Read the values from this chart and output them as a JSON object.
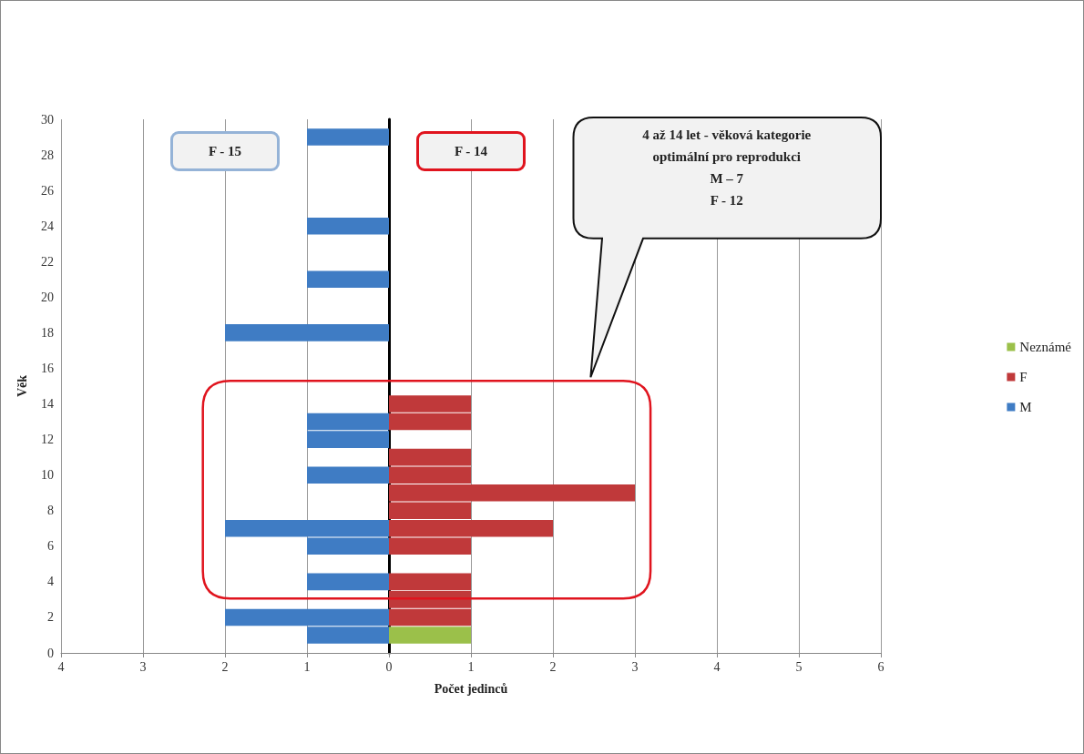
{
  "chart_data": {
    "type": "bar",
    "orientation": "horizontal",
    "stacked": true,
    "xlabel": "Počet jedinců",
    "ylabel": "Věk",
    "x": [
      1,
      2,
      3,
      4,
      6,
      7,
      8,
      9,
      10,
      11,
      12,
      13,
      14,
      18,
      21,
      24,
      29
    ],
    "series": [
      {
        "name": "M",
        "color": "#3f7cc4",
        "values": [
          -1,
          -2,
          null,
          -1,
          -1,
          -2,
          null,
          null,
          -1,
          null,
          -1,
          -1,
          null,
          -2,
          -1,
          -1,
          -1
        ]
      },
      {
        "name": "F",
        "color": "#c0393a",
        "values": [
          null,
          1,
          1,
          1,
          1,
          2,
          1,
          3,
          1,
          1,
          null,
          1,
          1,
          null,
          null,
          null,
          null
        ]
      },
      {
        "name": "Neznámé",
        "color": "#9bc04a",
        "values": [
          1,
          null,
          null,
          null,
          null,
          null,
          null,
          null,
          null,
          null,
          null,
          null,
          null,
          null,
          null,
          null,
          null
        ]
      }
    ],
    "xlim": [
      -4,
      6
    ],
    "xticks": [
      {
        "value": -4,
        "label": "4"
      },
      {
        "value": -3,
        "label": "3"
      },
      {
        "value": -2,
        "label": "2"
      },
      {
        "value": -1,
        "label": "1"
      },
      0,
      1,
      2,
      3,
      4,
      5,
      6
    ],
    "ylim": [
      0,
      30
    ],
    "yticks": [
      0,
      2,
      4,
      6,
      8,
      10,
      12,
      14,
      16,
      18,
      20,
      22,
      24,
      26,
      28,
      30
    ],
    "grid": "x",
    "legend": "right",
    "annotations": [
      "F - 15",
      "F - 14",
      "4 až 14 let - věková kategorie\noptimální pro reprodukci\nM – 7\nF - 12"
    ]
  }
}
